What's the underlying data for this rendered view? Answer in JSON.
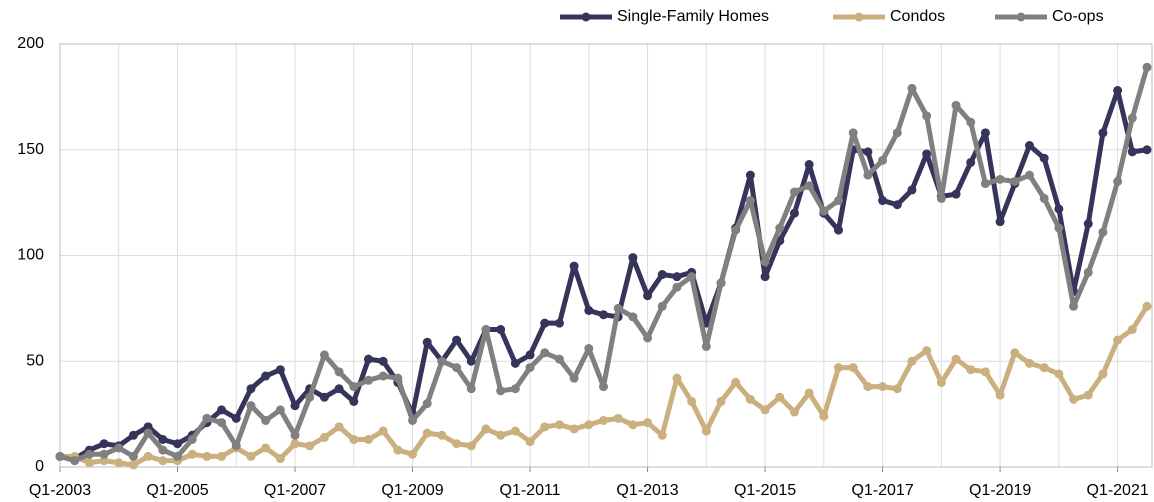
{
  "chart_data": {
    "type": "line",
    "categories": [
      "Q1-2003",
      null,
      null,
      null,
      null,
      null,
      null,
      null,
      "Q1-2005",
      null,
      null,
      null,
      null,
      null,
      null,
      null,
      "Q1-2007",
      null,
      null,
      null,
      null,
      null,
      null,
      null,
      "Q1-2009",
      null,
      null,
      null,
      null,
      null,
      null,
      null,
      "Q1-2011",
      null,
      null,
      null,
      null,
      null,
      null,
      null,
      "Q1-2013",
      null,
      null,
      null,
      null,
      null,
      null,
      null,
      "Q1-2015",
      null,
      null,
      null,
      null,
      null,
      null,
      null,
      "Q1-2017",
      null,
      null,
      null,
      null,
      null,
      null,
      null,
      "Q1-2019",
      null,
      null,
      null,
      null,
      null,
      null,
      null,
      "Q1-2021",
      null,
      null
    ],
    "series": [
      {
        "name": "Single-Family Homes",
        "color": "#35345a",
        "values": [
          5,
          4,
          8,
          11,
          10,
          15,
          19,
          13,
          11,
          15,
          21,
          27,
          23,
          37,
          43,
          46,
          29,
          37,
          33,
          37,
          31,
          51,
          50,
          40,
          25,
          59,
          50,
          60,
          50,
          65,
          65,
          49,
          53,
          68,
          68,
          95,
          74,
          72,
          71,
          99,
          81,
          91,
          90,
          92,
          68,
          87,
          113,
          138,
          90,
          107,
          120,
          143,
          120,
          112,
          150,
          149,
          126,
          124,
          131,
          148,
          128,
          129,
          144,
          158,
          116,
          134,
          152,
          146,
          122,
          83,
          115,
          158,
          178,
          149,
          150
        ]
      },
      {
        "name": "Condos",
        "color": "#c9b07e",
        "values": [
          5,
          5,
          2,
          3,
          2,
          1,
          5,
          3,
          3,
          6,
          5,
          5,
          9,
          5,
          9,
          4,
          11,
          10,
          14,
          19,
          13,
          13,
          17,
          8,
          6,
          16,
          15,
          11,
          10,
          18,
          15,
          17,
          12,
          19,
          20,
          18,
          20,
          22,
          23,
          20,
          21,
          15,
          42,
          31,
          17,
          31,
          40,
          32,
          27,
          33,
          26,
          35,
          24,
          47,
          47,
          38,
          38,
          37,
          50,
          55,
          40,
          51,
          46,
          45,
          34,
          54,
          49,
          47,
          44,
          32,
          34,
          44,
          60,
          65,
          76
        ]
      },
      {
        "name": "Co-ops",
        "color": "#808080",
        "values": [
          5,
          3,
          6,
          6,
          9,
          5,
          16,
          8,
          5,
          13,
          23,
          21,
          10,
          29,
          22,
          27,
          15,
          33,
          53,
          45,
          38,
          41,
          43,
          42,
          22,
          30,
          50,
          47,
          37,
          65,
          36,
          37,
          47,
          54,
          51,
          42,
          56,
          38,
          75,
          71,
          61,
          76,
          85,
          90,
          57,
          87,
          112,
          126,
          97,
          113,
          130,
          133,
          121,
          126,
          158,
          138,
          145,
          158,
          179,
          166,
          127,
          171,
          163,
          134,
          136,
          135,
          138,
          127,
          113,
          76,
          92,
          111,
          135,
          165,
          189
        ]
      }
    ],
    "ylim": [
      0,
      200
    ],
    "yticks": [
      0,
      50,
      100,
      150,
      200
    ],
    "grid": true
  }
}
